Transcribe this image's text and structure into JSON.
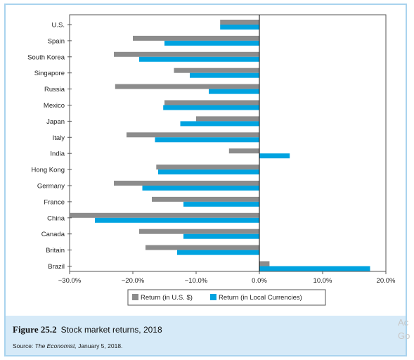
{
  "chart_data": {
    "type": "bar",
    "orientation": "horizontal",
    "categories": [
      "U.S.",
      "Spain",
      "South Korea",
      "Singapore",
      "Russia",
      "Mexico",
      "Japan",
      "Italy",
      "India",
      "Hong Kong",
      "Germany",
      "France",
      "China",
      "Canada",
      "Britain",
      "Brazil"
    ],
    "series": [
      {
        "name": "Return (in U.S. $)",
        "color": "#8c8c8c",
        "values": [
          -6.2,
          -20.0,
          -23.0,
          -13.5,
          -22.8,
          -15.0,
          -10.0,
          -21.0,
          -4.8,
          -16.3,
          -23.0,
          -17.0,
          -30.0,
          -19.0,
          -18.0,
          1.6
        ]
      },
      {
        "name": "Return (in Local Currencies)",
        "color": "#00a3e0",
        "values": [
          -6.2,
          -15.0,
          -19.0,
          -11.0,
          -8.0,
          -15.2,
          -12.5,
          -16.5,
          4.8,
          -16.0,
          -18.5,
          -12.0,
          -26.0,
          -12.0,
          -13.0,
          17.5
        ]
      }
    ],
    "xlim": [
      -30,
      20
    ],
    "xticks": [
      -30,
      -20,
      -10,
      0,
      10,
      20
    ],
    "xtick_labels": [
      "−30.0%",
      "−20.0%",
      "−10.0%",
      "0.0%",
      "10.0%",
      "20.0%"
    ],
    "legend_position": "bottom"
  },
  "caption": {
    "figure_label": "Figure 25.2",
    "title": "Stock market returns, 2018",
    "source_prefix": "Source: ",
    "source_publication": "The Economist,",
    "source_date": " January 5, 2018."
  },
  "overlay_text": {
    "line1": "Ac",
    "line2": "Go"
  }
}
